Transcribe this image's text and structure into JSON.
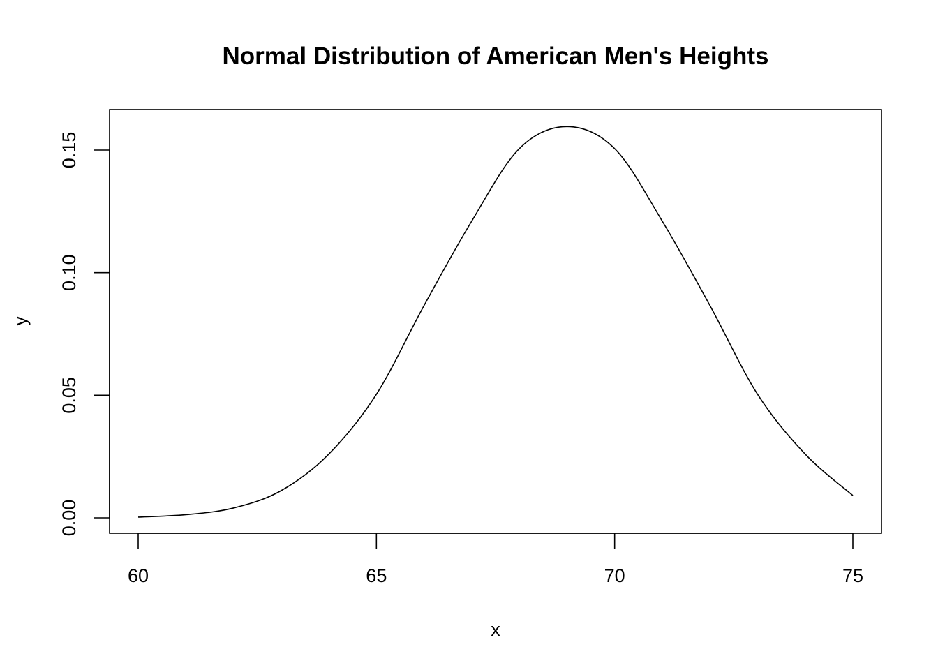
{
  "chart_data": {
    "type": "line",
    "title": "Normal Distribution of American Men's Heights",
    "xlabel": "x",
    "ylabel": "y",
    "xlim": [
      60,
      75
    ],
    "ylim": [
      0,
      0.16
    ],
    "x_ticks": [
      60,
      65,
      70,
      75
    ],
    "x_tick_labels": [
      "60",
      "65",
      "70",
      "75"
    ],
    "y_ticks": [
      0,
      0.05,
      0.1,
      0.15
    ],
    "y_tick_labels": [
      "0.00",
      "0.05",
      "0.10",
      "0.15"
    ],
    "grid": false,
    "series": [
      {
        "x": [
          60,
          61,
          62,
          63,
          64,
          65,
          66,
          67,
          68,
          69,
          70,
          71,
          72,
          73,
          74,
          75
        ],
        "y": [
          0.0003,
          0.0013,
          0.004,
          0.0111,
          0.026,
          0.0504,
          0.0866,
          0.121,
          0.1506,
          0.1596,
          0.1506,
          0.121,
          0.0866,
          0.0504,
          0.026,
          0.0091
        ]
      }
    ]
  }
}
